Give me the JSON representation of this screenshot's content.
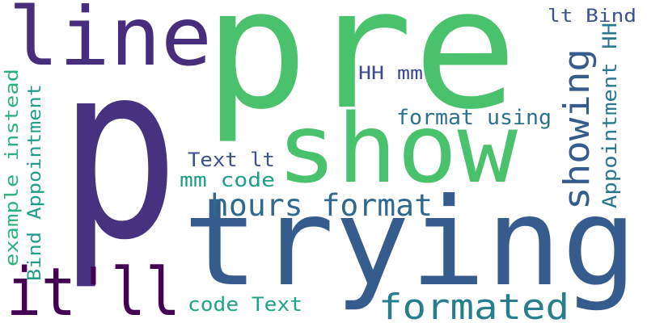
{
  "words": [
    {
      "key": "p",
      "text": "p",
      "color": "#46327e"
    },
    {
      "key": "pre",
      "text": "pre",
      "color": "#4ac16d"
    },
    {
      "key": "line",
      "text": "line",
      "color": "#472d7b"
    },
    {
      "key": "show",
      "text": "show",
      "color": "#4ac16d"
    },
    {
      "key": "trying",
      "text": "trying",
      "color": "#365c8d"
    },
    {
      "key": "it_ll",
      "text": "it'll",
      "color": "#440154"
    },
    {
      "key": "formated",
      "text": "formated",
      "color": "#277f8e"
    },
    {
      "key": "hours_format",
      "text": "hours format",
      "color": "#31688e"
    },
    {
      "key": "showing",
      "text": "showing",
      "color": "#365c8d"
    },
    {
      "key": "lt_bind",
      "text": "lt Bind",
      "color": "#3b528b"
    },
    {
      "key": "hh_mm",
      "text": "HH mm",
      "color": "#3e4989"
    },
    {
      "key": "format_using",
      "text": "format using",
      "color": "#2c728e"
    },
    {
      "key": "text_lt",
      "text": "Text lt",
      "color": "#3b528b"
    },
    {
      "key": "mm_code",
      "text": "mm code",
      "color": "#1f9e89"
    },
    {
      "key": "code_text",
      "text": "code Text",
      "color": "#20a386"
    },
    {
      "key": "appointment_hh",
      "text": "Appointment HH",
      "color": "#2a788e"
    },
    {
      "key": "example_instead",
      "text": "example instead",
      "color": "#2db27d"
    },
    {
      "key": "bind_appointment",
      "text": "Bind Appointment",
      "color": "#1f9e89"
    }
  ]
}
